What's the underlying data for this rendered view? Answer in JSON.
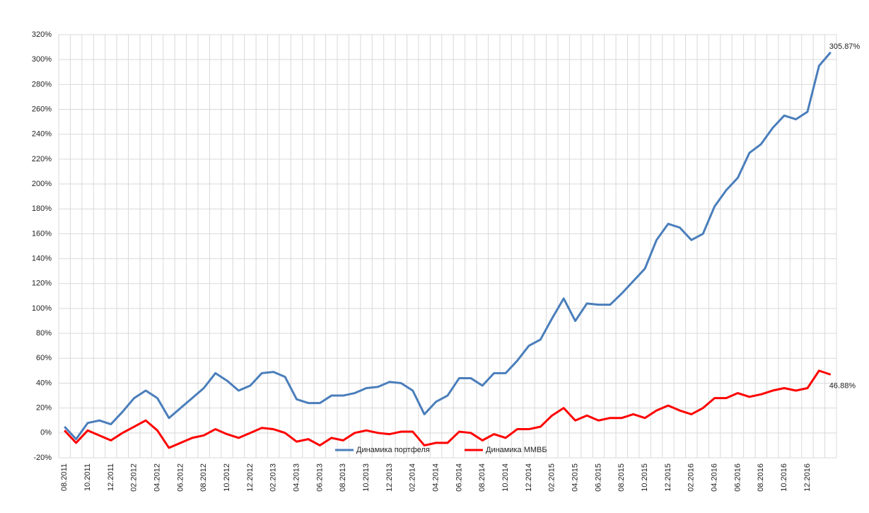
{
  "chart_data": {
    "type": "line",
    "categories": [
      "08.2011",
      null,
      "10.2011",
      null,
      "12.2011",
      null,
      "02.2012",
      null,
      "04.2012",
      null,
      "06.2012",
      null,
      "08.2012",
      null,
      "10.2012",
      null,
      "12.2012",
      null,
      "02.2013",
      null,
      "04.2013",
      null,
      "06.2013",
      null,
      "08.2013",
      null,
      "10.2013",
      null,
      "12.2013",
      null,
      "02.2014",
      null,
      "04.2014",
      null,
      "06.2014",
      null,
      "08.2014",
      null,
      "10.2014",
      null,
      "12.2014",
      null,
      "02.2015",
      null,
      "04.2015",
      null,
      "06.2015",
      null,
      "08.2015",
      null,
      "10.2015",
      null,
      "12.2015",
      null,
      "02.2016",
      null,
      "04.2016",
      null,
      "06.2016",
      null,
      "08.2016",
      null,
      "10.2016",
      null,
      "12.2016",
      null,
      null
    ],
    "series": [
      {
        "name": "Динамика портфеля",
        "color": "#4a7ebb",
        "values": [
          5,
          -5,
          8,
          10,
          7,
          17,
          28,
          34,
          28,
          12,
          20,
          28,
          36,
          48,
          42,
          34,
          38,
          48,
          49,
          45,
          27,
          24,
          24,
          30,
          30,
          32,
          36,
          37,
          41,
          40,
          34,
          15,
          25,
          30,
          44,
          44,
          38,
          48,
          48,
          58,
          70,
          75,
          92,
          108,
          90,
          104,
          103,
          103,
          112,
          122,
          132,
          155,
          168,
          165,
          155,
          160,
          182,
          195,
          205,
          225,
          232,
          245,
          255,
          252,
          258,
          295,
          305.87
        ],
        "value_labels": [
          null,
          null,
          null,
          null,
          null,
          null,
          null,
          null,
          null,
          null,
          null,
          null,
          null,
          null,
          null,
          null,
          null,
          null,
          null,
          null,
          null,
          null,
          null,
          null,
          null,
          null,
          null,
          null,
          null,
          null,
          null,
          null,
          null,
          null,
          null,
          null,
          null,
          null,
          null,
          null,
          null,
          null,
          null,
          null,
          null,
          null,
          null,
          null,
          null,
          null,
          null,
          null,
          null,
          null,
          null,
          null,
          null,
          null,
          null,
          null,
          null,
          null,
          null,
          null,
          null,
          null,
          "305.87%"
        ]
      },
      {
        "name": "Динамика ММВБ",
        "color": "#ff0000",
        "values": [
          2,
          -8,
          2,
          -2,
          -6,
          0,
          5,
          10,
          2,
          -12,
          -8,
          -4,
          -2,
          3,
          -1,
          -4,
          0,
          4,
          3,
          0,
          -7,
          -5,
          -10,
          -4,
          -6,
          0,
          2,
          0,
          -1,
          1,
          1,
          -10,
          -8,
          -8,
          1,
          0,
          -6,
          -1,
          -4,
          3,
          3,
          5,
          14,
          20,
          10,
          14,
          10,
          12,
          12,
          15,
          12,
          18,
          22,
          18,
          15,
          20,
          28,
          28,
          32,
          29,
          31,
          34,
          36,
          34,
          36,
          50,
          46.88
        ],
        "value_labels": [
          null,
          null,
          null,
          null,
          null,
          null,
          null,
          null,
          null,
          null,
          null,
          null,
          null,
          null,
          null,
          null,
          null,
          null,
          null,
          null,
          null,
          null,
          null,
          null,
          null,
          null,
          null,
          null,
          null,
          null,
          null,
          null,
          null,
          null,
          null,
          null,
          null,
          null,
          null,
          null,
          null,
          null,
          null,
          null,
          null,
          null,
          null,
          null,
          null,
          null,
          null,
          null,
          null,
          null,
          null,
          null,
          null,
          null,
          null,
          null,
          null,
          null,
          null,
          null,
          null,
          null,
          "46.88%"
        ]
      }
    ],
    "ylim": [
      -20,
      320
    ],
    "yticks": [
      {
        "value": -20,
        "label": "-20%"
      },
      {
        "value": 0,
        "label": "0%"
      },
      {
        "value": 20,
        "label": "20%"
      },
      {
        "value": 40,
        "label": "40%"
      },
      {
        "value": 60,
        "label": "60%"
      },
      {
        "value": 80,
        "label": "80%"
      },
      {
        "value": 100,
        "label": "100%"
      },
      {
        "value": 120,
        "label": "120%"
      },
      {
        "value": 140,
        "label": "140%"
      },
      {
        "value": 160,
        "label": "160%"
      },
      {
        "value": 180,
        "label": "180%"
      },
      {
        "value": 200,
        "label": "200%"
      },
      {
        "value": 220,
        "label": "220%"
      },
      {
        "value": 240,
        "label": "240%"
      },
      {
        "value": 260,
        "label": "260%"
      },
      {
        "value": 280,
        "label": "280%"
      },
      {
        "value": 300,
        "label": "300%"
      },
      {
        "value": 320,
        "label": "320%"
      }
    ],
    "grid": true,
    "legend": "bottom"
  }
}
